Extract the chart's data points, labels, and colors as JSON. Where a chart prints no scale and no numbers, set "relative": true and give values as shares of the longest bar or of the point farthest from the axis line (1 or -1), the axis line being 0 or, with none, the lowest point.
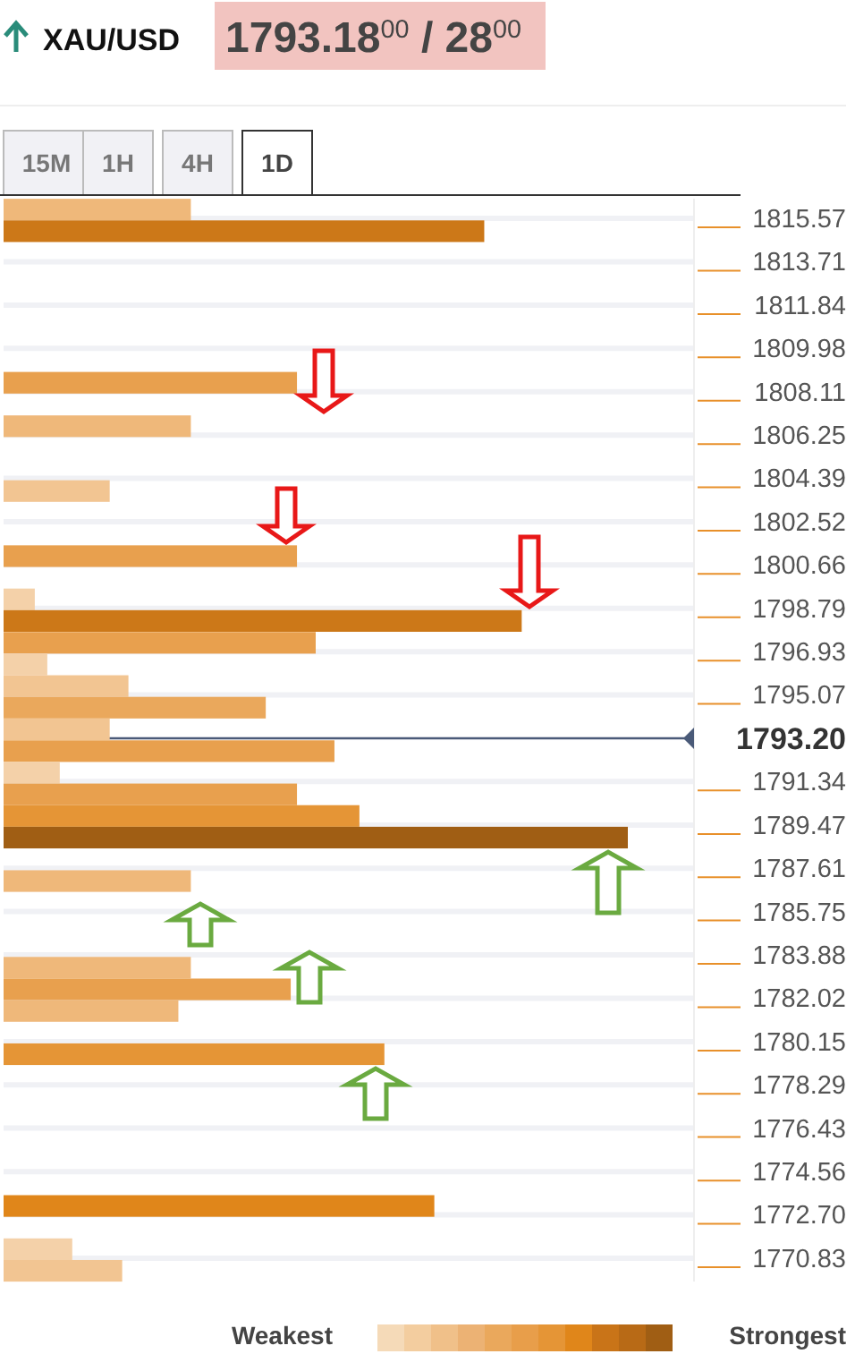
{
  "chart_data": {
    "type": "bar",
    "orientation": "horizontal",
    "relative": true,
    "title": "XAU/USD",
    "subtitle": "1793.18$^{00}$ / 28$^{00}$",
    "x": [
      1815.95,
      1815.02,
      1808.5,
      1806.63,
      1803.84,
      1801.04,
      1799.18,
      1798.25,
      1797.31,
      1796.38,
      1795.45,
      1794.52,
      1793.59,
      1792.65,
      1791.72,
      1790.79,
      1789.86,
      1788.93,
      1787.06,
      1783.33,
      1782.4,
      1781.47,
      1779.61,
      1773.08,
      1771.22,
      1770.29
    ],
    "values": [
      0.3,
      0.77,
      0.47,
      0.3,
      0.17,
      0.47,
      0.05,
      0.83,
      0.5,
      0.07,
      0.2,
      0.42,
      0.17,
      0.53,
      0.09,
      0.47,
      0.57,
      1,
      0.3,
      0.3,
      0.46,
      0.28,
      0.61,
      0.69,
      0.11,
      0.19
    ],
    "colors": [
      "#efb87a",
      "#cc7818",
      "#e8a04e",
      "#efb87a",
      "#f2c592",
      "#e8a04e",
      "#f4d1a9",
      "#cc7818",
      "#e8a04e",
      "#f4d1a9",
      "#f2c592",
      "#eaa85c",
      "#f2c592",
      "#e8a04e",
      "#f4d1a9",
      "#e8a04e",
      "#e59536",
      "#a05e14",
      "#efb87a",
      "#efb87a",
      "#e8a04e",
      "#efb87a",
      "#e59536",
      "#e0861a",
      "#f4d1a9",
      "#f2c592"
    ],
    "ylim": [
      1769.83,
      1816.42
    ],
    "yticks": [
      1815.57,
      1813.71,
      1811.84,
      1809.98,
      1808.11,
      1806.25,
      1804.39,
      1802.52,
      1800.66,
      1798.79,
      1796.93,
      1795.07,
      1791.34,
      1789.47,
      1787.61,
      1785.75,
      1783.88,
      1782.02,
      1780.15,
      1778.29,
      1776.43,
      1774.56,
      {
        "value": 1772.7,
        "label": "1772.70"
      },
      1770.83
    ],
    "ref_lines": [
      {
        "axis": "y",
        "value": 1793.2,
        "label": "1793.20",
        "color": "#4a5a78"
      }
    ],
    "grid": "y",
    "annotations": [
      "15M",
      "1H",
      "4H",
      "1D",
      "Weakest",
      "Strongest"
    ]
  }
}
